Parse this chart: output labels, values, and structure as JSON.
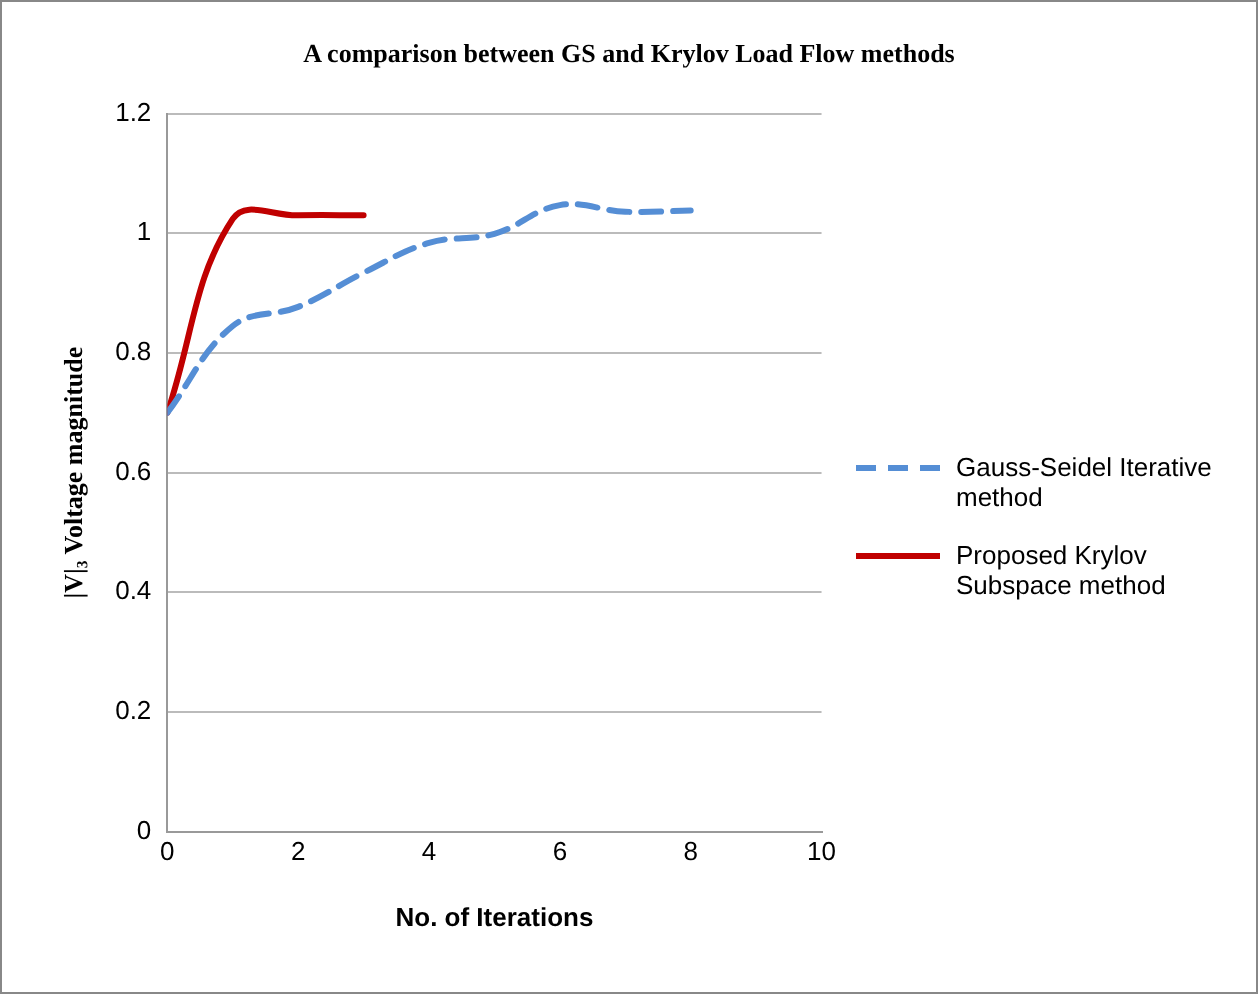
{
  "chart_data": {
    "type": "line",
    "title": "A comparison between GS and Krylov Load Flow methods",
    "xlabel": "No. of Iterations",
    "ylabel": "|V|₃ Voltage magnitude",
    "series": [
      {
        "name": "Gauss-Seidel Iterative method",
        "color": "#558ed5",
        "line_style": "dashed",
        "x": [
          0,
          1,
          2,
          3,
          4,
          5,
          6,
          7,
          8
        ],
        "values": [
          0.7,
          0.845,
          0.877,
          0.934,
          0.984,
          0.999,
          1.047,
          1.036,
          1.038
        ]
      },
      {
        "name": "Proposed Krylov Subspace method",
        "color": "#c00000",
        "line_style": "solid",
        "x": [
          0,
          1,
          2,
          3
        ],
        "values": [
          0.7,
          1.024,
          1.03,
          1.03
        ]
      }
    ],
    "xlim": [
      0,
      10
    ],
    "xticks": [
      0,
      2,
      4,
      6,
      8,
      10
    ],
    "ylim": [
      0,
      1.2
    ],
    "yticks": [
      0,
      0.2,
      0.4,
      0.6,
      0.8,
      {
        "value": 1,
        "label": "1"
      },
      1.2
    ],
    "grid": "y",
    "legend": "right",
    "marker": "none"
  }
}
